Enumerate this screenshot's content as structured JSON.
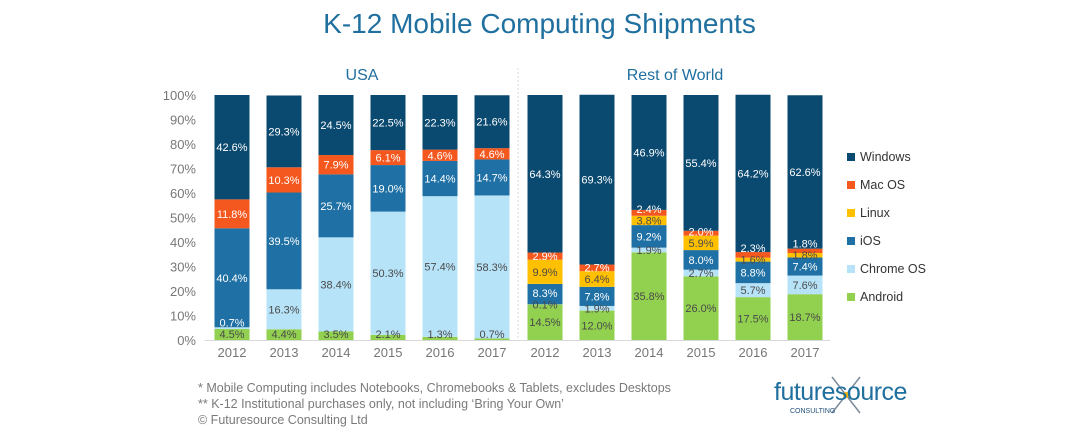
{
  "title": "K-12 Mobile Computing Shipments",
  "footnotes": [
    "* Mobile Computing includes Notebooks, Chromebooks & Tablets, excludes Desktops",
    "** K-12 Institutional purchases only, not including ‘Bring Your Own’",
    "© Futuresource Consulting Ltd"
  ],
  "logo": {
    "main": "futuresource",
    "sub": "CONSULTING"
  },
  "chart_data": {
    "type": "bar",
    "stacked": "percent",
    "title": "K-12 Mobile Computing Shipments",
    "ylim": [
      0,
      100
    ],
    "yticks": [
      "0%",
      "10%",
      "20%",
      "30%",
      "40%",
      "50%",
      "60%",
      "70%",
      "80%",
      "90%",
      "100%"
    ],
    "legend_position": "right",
    "groups": [
      {
        "name": "USA",
        "categories": [
          "2012",
          "2013",
          "2014",
          "2015",
          "2016",
          "2017"
        ],
        "series": [
          {
            "name": "Android",
            "color": "#92d050",
            "values": [
              4.5,
              4.4,
              3.5,
              2.1,
              1.3,
              0.7
            ]
          },
          {
            "name": "Chrome OS",
            "color": "#b7e3f8",
            "values": [
              0.7,
              16.3,
              38.4,
              50.3,
              57.4,
              58.3
            ]
          },
          {
            "name": "iOS",
            "color": "#1f70a4",
            "values": [
              40.4,
              39.5,
              25.7,
              19.0,
              14.4,
              14.7
            ]
          },
          {
            "name": "Linux",
            "color": "#ffc000",
            "values": [
              0,
              0,
              0,
              0,
              0,
              0
            ]
          },
          {
            "name": "Mac OS",
            "color": "#f4581f",
            "values": [
              11.8,
              10.3,
              7.9,
              6.1,
              4.6,
              4.6
            ]
          },
          {
            "name": "Windows",
            "color": "#0b4a70",
            "values": [
              42.6,
              29.3,
              24.5,
              22.5,
              22.3,
              21.6
            ]
          }
        ]
      },
      {
        "name": "Rest of World",
        "categories": [
          "2012",
          "2013",
          "2014",
          "2015",
          "2016",
          "2017"
        ],
        "series": [
          {
            "name": "Android",
            "color": "#92d050",
            "values": [
              14.5,
              12.0,
              35.8,
              26.0,
              17.5,
              18.7
            ]
          },
          {
            "name": "Chrome OS",
            "color": "#b7e3f8",
            "values": [
              0.1,
              1.9,
              1.9,
              2.7,
              5.7,
              7.6
            ]
          },
          {
            "name": "iOS",
            "color": "#1f70a4",
            "values": [
              8.3,
              7.8,
              9.2,
              8.0,
              8.8,
              7.4
            ]
          },
          {
            "name": "Linux",
            "color": "#ffc000",
            "values": [
              9.9,
              6.4,
              3.8,
              5.9,
              1.6,
              1.8
            ]
          },
          {
            "name": "Mac OS",
            "color": "#f4581f",
            "values": [
              2.9,
              2.7,
              2.4,
              2.0,
              2.3,
              1.8
            ]
          },
          {
            "name": "Windows",
            "color": "#0b4a70",
            "values": [
              64.3,
              69.3,
              46.9,
              55.4,
              64.2,
              62.6
            ]
          }
        ]
      }
    ],
    "legend": [
      "Windows",
      "Mac OS",
      "Linux",
      "iOS",
      "Chrome OS",
      "Android"
    ]
  }
}
